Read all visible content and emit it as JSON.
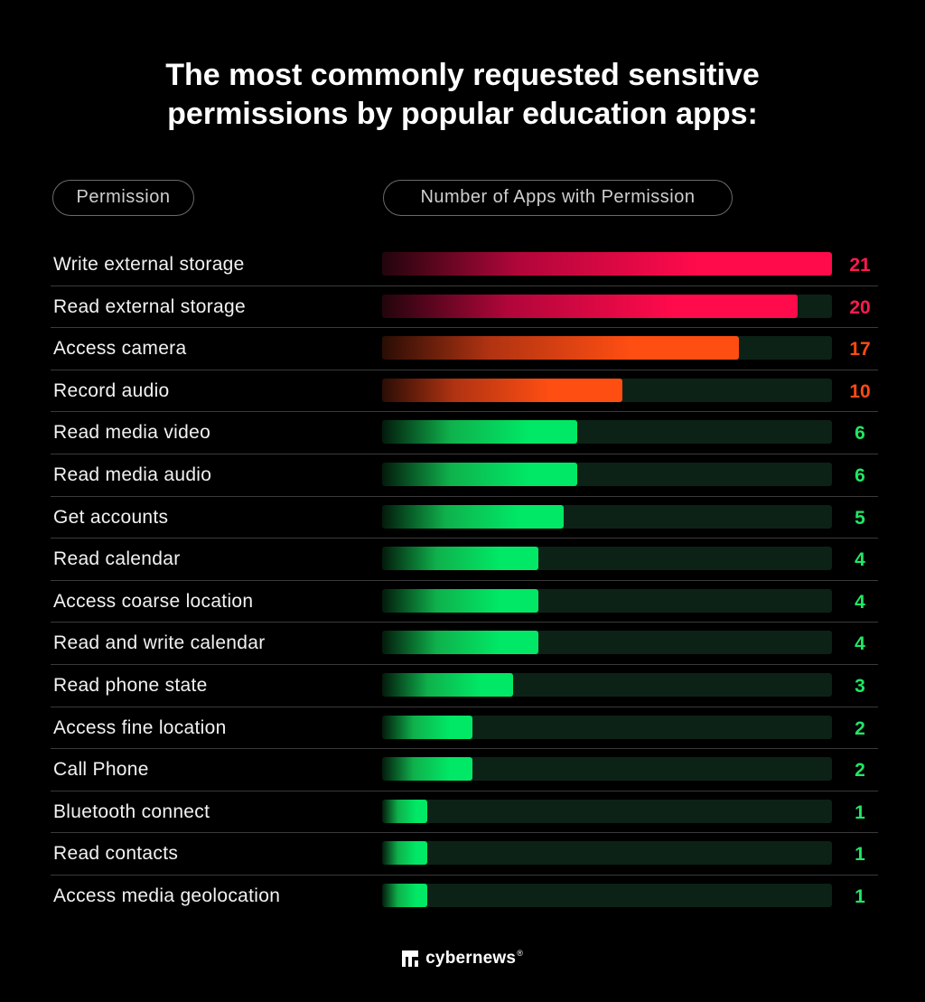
{
  "title_line1": "The most commonly requested sensitive",
  "title_line2": "permissions by popular education apps:",
  "header": {
    "permission": "Permission",
    "count": "Number of Apps with Permission"
  },
  "colors": {
    "red": "#ff0a4b",
    "orange": "#ff4e12",
    "green": "#00e865",
    "track": "#0d2216",
    "background": "#000000"
  },
  "chart_data": {
    "type": "bar",
    "orientation": "horizontal",
    "title": "The most commonly requested sensitive permissions by popular education apps:",
    "xlabel": "Number of Apps with Permission",
    "ylabel": "Permission",
    "xlim": [
      0,
      21
    ],
    "grid": false,
    "categories": [
      "Write external storage",
      "Read external storage",
      "Access camera",
      "Record audio",
      "Read media video",
      "Read media audio",
      "Get accounts",
      "Read calendar",
      "Access coarse location",
      "Read and write calendar",
      "Read phone state",
      "Access fine location",
      "Call Phone",
      "Bluetooth connect",
      "Read contacts",
      "Access media geolocation"
    ],
    "values": [
      21,
      20,
      17,
      10,
      6,
      6,
      5,
      4,
      4,
      4,
      3,
      2,
      2,
      1,
      1,
      1
    ],
    "bar_colors": [
      "red",
      "red",
      "orange",
      "orange",
      "green",
      "green",
      "green",
      "green",
      "green",
      "green",
      "green",
      "green",
      "green",
      "green",
      "green",
      "green"
    ],
    "bar_fill_fraction": [
      1.0,
      0.924,
      0.794,
      0.534,
      0.434,
      0.434,
      0.403,
      0.347,
      0.347,
      0.347,
      0.291,
      0.2,
      0.2,
      0.1,
      0.1,
      0.1
    ]
  },
  "brand": {
    "name": "cybernews",
    "mark": "®",
    "logo_icon": "cybernews-logo-icon"
  }
}
